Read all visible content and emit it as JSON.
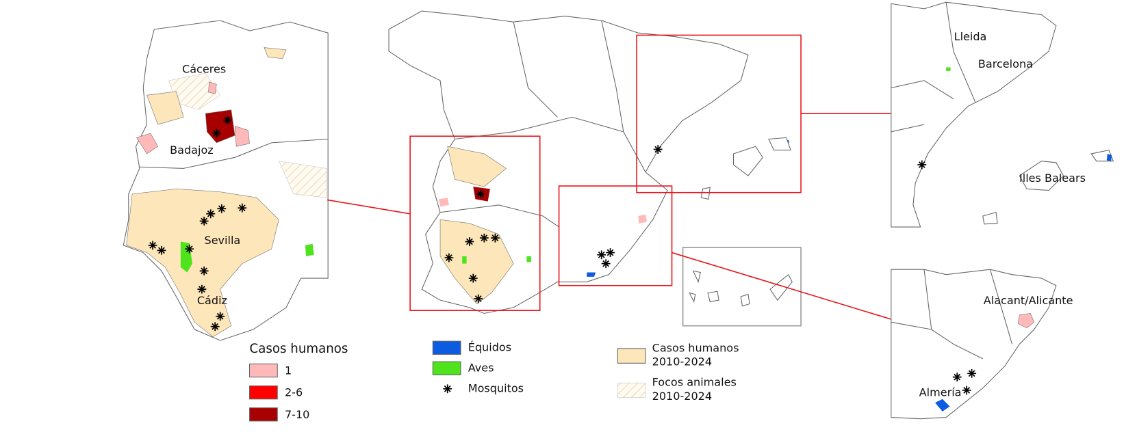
{
  "maps": {
    "left_inset": {
      "labels": [
        "Cáceres",
        "Badajoz",
        "Sevilla",
        "Cádiz"
      ]
    },
    "right_top_inset": {
      "labels": [
        "Lleida",
        "Barcelona",
        "Illes Balears"
      ]
    },
    "right_bottom_inset": {
      "labels": [
        "Alacant/Alicante",
        "Almería"
      ]
    }
  },
  "legend": {
    "human_cases": {
      "title": "Casos humanos",
      "items": [
        {
          "label": "1",
          "color": "#ffb9b9"
        },
        {
          "label": "2-6",
          "color": "#ff0000"
        },
        {
          "label": "7-10",
          "color": "#a80000"
        }
      ]
    },
    "hosts": [
      {
        "label": "Équidos",
        "color": "#0b5ce0"
      },
      {
        "label": "Aves",
        "color": "#4ee31c"
      },
      {
        "label": "Mosquitos"
      }
    ],
    "areas": [
      {
        "lines": [
          "Casos humanos",
          "2010-2024"
        ],
        "color": "#fde6b9"
      },
      {
        "lines": [
          "Focos animales",
          "2010-2024"
        ]
      }
    ]
  }
}
